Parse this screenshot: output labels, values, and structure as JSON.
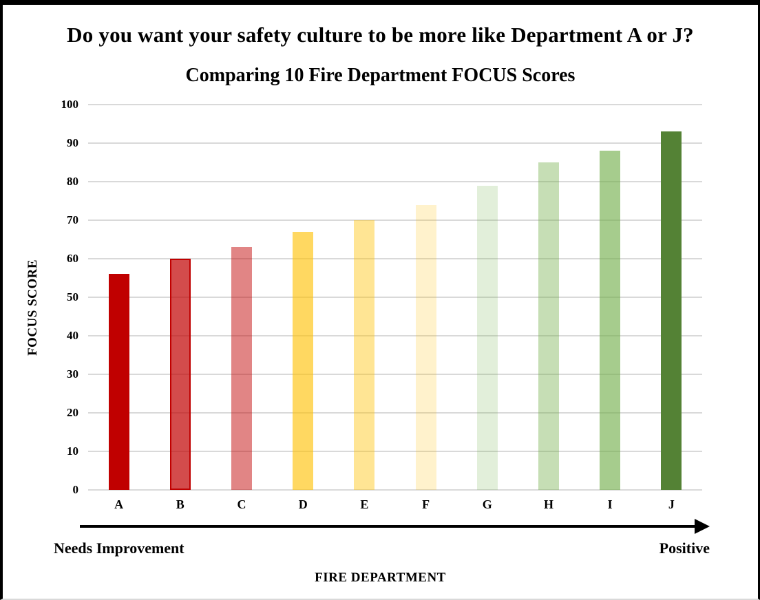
{
  "chart_data": {
    "type": "bar",
    "suptitle": "Do you want your safety culture to be more like Department A or J?",
    "title": "Comparing 10 Fire Department FOCUS Scores",
    "xlabel": "FIRE DEPARTMENT",
    "ylabel": "FOCUS SCORE",
    "x_annotation_left": "Needs Improvement",
    "x_annotation_right": "Positive",
    "categories": [
      "A",
      "B",
      "C",
      "D",
      "E",
      "F",
      "G",
      "H",
      "I",
      "J"
    ],
    "values": [
      56,
      60,
      63,
      67,
      70,
      74,
      79,
      85,
      88,
      93
    ],
    "bar_fills": [
      "#C00000",
      "rgba(192,0,0,0.70)",
      "rgba(192,0,0,0.48)",
      "rgba(255,192,0,0.62)",
      "rgba(255,192,0,0.42)",
      "rgba(255,192,0,0.20)",
      "rgba(112,173,71,0.20)",
      "rgba(112,173,71,0.40)",
      "rgba(112,173,71,0.62)",
      "#548235"
    ],
    "bar_border_colors": [
      null,
      "#C00000",
      null,
      null,
      null,
      null,
      null,
      null,
      null,
      null
    ],
    "ylim": [
      0,
      100
    ],
    "ytick_step": 10,
    "grid": true,
    "gridline_color": "#D9D9D9",
    "axis_arrow_color": "#000000",
    "legend_position": "none"
  }
}
